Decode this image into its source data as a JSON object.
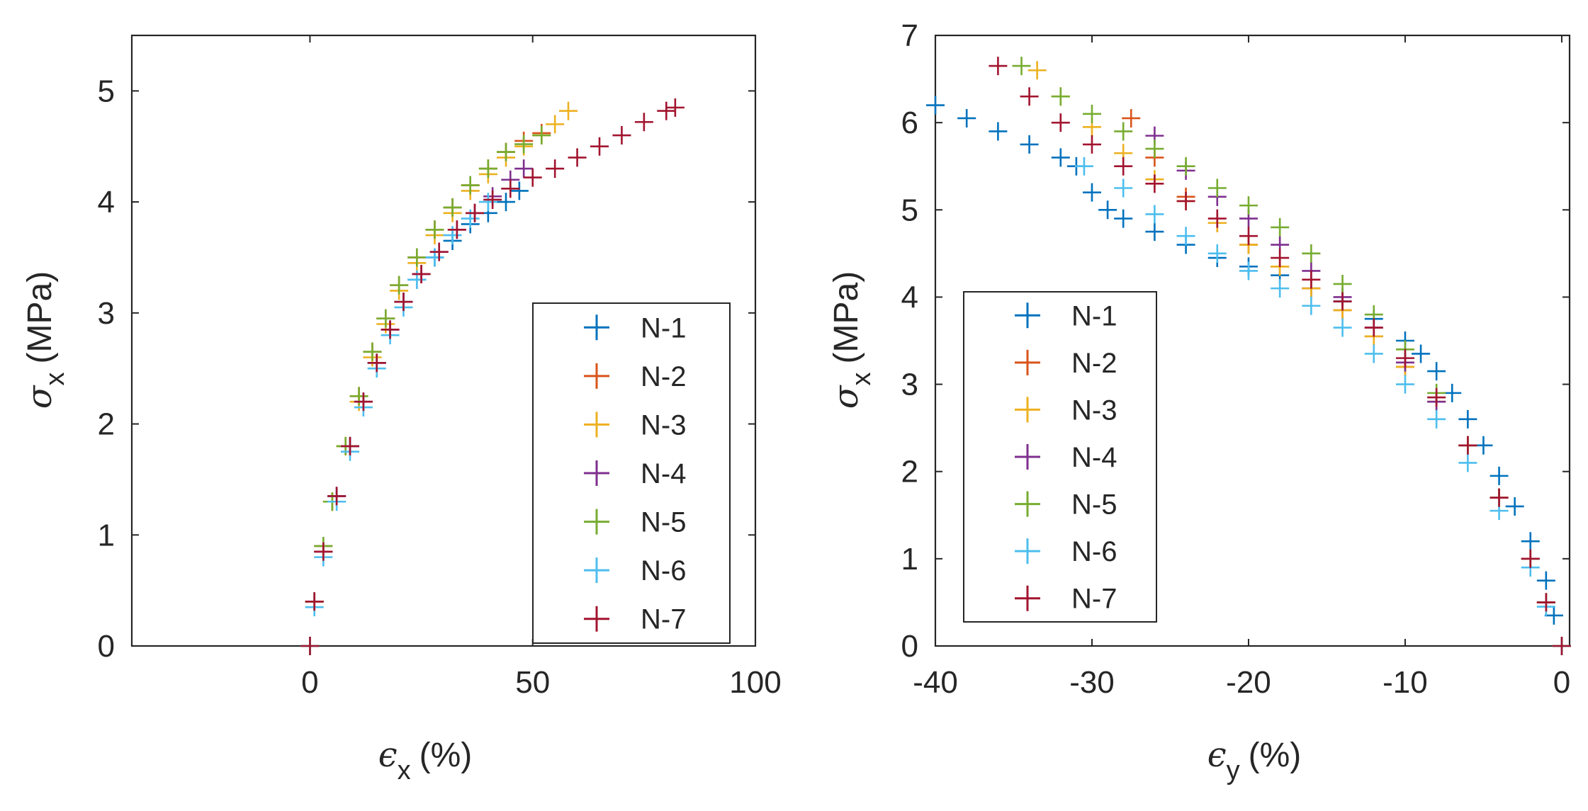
{
  "figure": {
    "panels": 2
  },
  "chart_data": [
    {
      "type": "scatter",
      "marker": "+",
      "title": "",
      "xlabel": {
        "symbol": "ϵ",
        "sub": "x",
        "unit": "(%)"
      },
      "ylabel": {
        "symbol": "σ",
        "sub": "x",
        "unit": "(MPa)"
      },
      "xlim": [
        -40,
        100
      ],
      "ylim": [
        0,
        5.5
      ],
      "xticks": [
        "0",
        "50",
        "100"
      ],
      "xtick_values": [
        0,
        50,
        100
      ],
      "yticks": [
        "0",
        "1",
        "2",
        "3",
        "4",
        "5"
      ],
      "ytick_values": [
        0,
        1,
        2,
        3,
        4,
        5
      ],
      "legend_position": "lower-right",
      "series": [
        {
          "name": "N-1",
          "color": "#0072BD",
          "x": [
            0,
            1,
            3,
            6,
            9,
            12,
            15,
            18,
            21,
            24,
            28,
            32,
            36,
            40,
            44,
            47
          ],
          "y": [
            0,
            0.4,
            0.85,
            1.35,
            1.8,
            2.2,
            2.55,
            2.85,
            3.1,
            3.3,
            3.5,
            3.65,
            3.8,
            3.9,
            4.0,
            4.1
          ]
        },
        {
          "name": "N-2",
          "color": "#D95319",
          "x": [
            0,
            1,
            3,
            5,
            8,
            11,
            14,
            17,
            20,
            24,
            28,
            32,
            36,
            40,
            44,
            48,
            52
          ],
          "y": [
            0,
            0.4,
            0.9,
            1.3,
            1.8,
            2.25,
            2.65,
            2.95,
            3.25,
            3.5,
            3.75,
            3.95,
            4.15,
            4.3,
            4.45,
            4.55,
            4.62
          ]
        },
        {
          "name": "N-3",
          "color": "#EDB120",
          "x": [
            0,
            1,
            3,
            5,
            8,
            11,
            14,
            17,
            20,
            24,
            28,
            32,
            36,
            40,
            44,
            48,
            52,
            55,
            58
          ],
          "y": [
            0,
            0.4,
            0.85,
            1.3,
            1.8,
            2.2,
            2.6,
            2.9,
            3.2,
            3.45,
            3.7,
            3.9,
            4.1,
            4.25,
            4.4,
            4.5,
            4.6,
            4.7,
            4.82
          ]
        },
        {
          "name": "N-4",
          "color": "#7E2F8E",
          "x": [
            0,
            1,
            3,
            6,
            9,
            12,
            15,
            18,
            21,
            25,
            29,
            33,
            37,
            41,
            45,
            48
          ],
          "y": [
            0,
            0.4,
            0.85,
            1.35,
            1.8,
            2.2,
            2.55,
            2.85,
            3.1,
            3.35,
            3.55,
            3.75,
            3.9,
            4.05,
            4.2,
            4.3
          ]
        },
        {
          "name": "N-5",
          "color": "#77AC30",
          "x": [
            0,
            1,
            3,
            5,
            8,
            11,
            14,
            17,
            20,
            24,
            28,
            32,
            36,
            40,
            44,
            48,
            52
          ],
          "y": [
            0,
            0.4,
            0.9,
            1.3,
            1.8,
            2.25,
            2.65,
            2.95,
            3.25,
            3.5,
            3.75,
            3.95,
            4.15,
            4.3,
            4.45,
            4.52,
            4.6
          ]
        },
        {
          "name": "N-6",
          "color": "#4DBEEE",
          "x": [
            0,
            1,
            3,
            6,
            9,
            12,
            15,
            18,
            21,
            24,
            28,
            32,
            36,
            40
          ],
          "y": [
            0,
            0.35,
            0.8,
            1.3,
            1.75,
            2.15,
            2.5,
            2.8,
            3.05,
            3.3,
            3.5,
            3.7,
            3.85,
            4.0
          ]
        },
        {
          "name": "N-7",
          "color": "#A2142F",
          "x": [
            0,
            1,
            3,
            6,
            9,
            12,
            15,
            18,
            21,
            25,
            29,
            33,
            37,
            41,
            45,
            50,
            55,
            60,
            65,
            70,
            75,
            80,
            82
          ],
          "y": [
            0,
            0.4,
            0.85,
            1.35,
            1.8,
            2.2,
            2.55,
            2.85,
            3.1,
            3.35,
            3.55,
            3.75,
            3.9,
            4.02,
            4.12,
            4.22,
            4.3,
            4.4,
            4.5,
            4.6,
            4.72,
            4.82,
            4.85
          ]
        }
      ]
    },
    {
      "type": "scatter",
      "marker": "+",
      "title": "",
      "xlabel": {
        "symbol": "ϵ",
        "sub": "y",
        "unit": "(%)"
      },
      "ylabel": {
        "symbol": "σ",
        "sub": "x",
        "unit": "(MPa)"
      },
      "xlim": [
        -40,
        0.5
      ],
      "ylim": [
        0,
        7
      ],
      "xticks": [
        "-40",
        "-30",
        "-20",
        "-10",
        "0"
      ],
      "xtick_values": [
        -40,
        -30,
        -20,
        -10,
        0
      ],
      "yticks": [
        "0",
        "1",
        "2",
        "3",
        "4",
        "5",
        "6",
        "7"
      ],
      "ytick_values": [
        0,
        1,
        2,
        3,
        4,
        5,
        6,
        7
      ],
      "legend_position": "lower-left",
      "series": [
        {
          "name": "N-1",
          "color": "#0072BD",
          "x": [
            0,
            -0.5,
            -1,
            -2,
            -3,
            -4,
            -5,
            -6,
            -7,
            -8,
            -9,
            -10,
            -12,
            -14,
            -16,
            -18,
            -20,
            -22,
            -24,
            -26,
            -28,
            -29,
            -30,
            -31,
            -32,
            -34,
            -36,
            -38,
            -40
          ],
          "y": [
            0,
            0.35,
            0.75,
            1.2,
            1.6,
            1.95,
            2.3,
            2.6,
            2.9,
            3.15,
            3.35,
            3.5,
            3.75,
            3.95,
            4.1,
            4.25,
            4.35,
            4.45,
            4.6,
            4.75,
            4.9,
            5.0,
            5.2,
            5.5,
            5.6,
            5.75,
            5.9,
            6.05,
            6.2
          ]
        },
        {
          "name": "N-2",
          "color": "#D95319",
          "x": [
            0,
            -1,
            -2,
            -4,
            -6,
            -8,
            -10,
            -12,
            -14,
            -16,
            -18,
            -20,
            -22,
            -24,
            -26,
            -27.5
          ],
          "y": [
            0,
            0.5,
            1.0,
            1.7,
            2.3,
            2.8,
            3.2,
            3.55,
            3.85,
            4.1,
            4.35,
            4.6,
            4.85,
            5.15,
            5.6,
            6.05
          ]
        },
        {
          "name": "N-3",
          "color": "#EDB120",
          "x": [
            0,
            -1,
            -2,
            -4,
            -6,
            -8,
            -10,
            -12,
            -14,
            -16,
            -18,
            -20,
            -22,
            -24,
            -26,
            -28,
            -30,
            -32,
            -33.5
          ],
          "y": [
            0,
            0.5,
            1.0,
            1.7,
            2.3,
            2.8,
            3.2,
            3.55,
            3.85,
            4.1,
            4.35,
            4.6,
            4.85,
            5.1,
            5.35,
            5.65,
            5.95,
            6.3,
            6.6
          ]
        },
        {
          "name": "N-4",
          "color": "#7E2F8E",
          "x": [
            0,
            -1,
            -2,
            -4,
            -6,
            -8,
            -10,
            -12,
            -14,
            -16,
            -18,
            -20,
            -22,
            -24,
            -26
          ],
          "y": [
            0,
            0.5,
            1.0,
            1.7,
            2.3,
            2.8,
            3.25,
            3.65,
            4.0,
            4.3,
            4.6,
            4.9,
            5.15,
            5.45,
            5.85
          ]
        },
        {
          "name": "N-5",
          "color": "#77AC30",
          "x": [
            0,
            -1,
            -2,
            -4,
            -6,
            -8,
            -10,
            -12,
            -14,
            -16,
            -18,
            -20,
            -22,
            -24,
            -26,
            -28,
            -30,
            -32,
            -34.5
          ],
          "y": [
            0,
            0.5,
            1.0,
            1.7,
            2.3,
            2.9,
            3.4,
            3.8,
            4.15,
            4.5,
            4.8,
            5.05,
            5.25,
            5.5,
            5.7,
            5.9,
            6.1,
            6.3,
            6.65
          ]
        },
        {
          "name": "N-6",
          "color": "#4DBEEE",
          "x": [
            0,
            -1,
            -2,
            -4,
            -6,
            -8,
            -10,
            -12,
            -14,
            -16,
            -18,
            -20,
            -22,
            -24,
            -26,
            -28,
            -30.5
          ],
          "y": [
            0,
            0.45,
            0.9,
            1.55,
            2.1,
            2.6,
            3.0,
            3.35,
            3.65,
            3.9,
            4.1,
            4.3,
            4.5,
            4.7,
            4.95,
            5.25,
            5.5
          ]
        },
        {
          "name": "N-7",
          "color": "#A2142F",
          "x": [
            0,
            -1,
            -2,
            -4,
            -6,
            -8,
            -10,
            -12,
            -14,
            -16,
            -18,
            -20,
            -22,
            -24,
            -26,
            -28,
            -30,
            -32,
            -34,
            -36
          ],
          "y": [
            0,
            0.5,
            1.0,
            1.7,
            2.3,
            2.85,
            3.3,
            3.65,
            3.95,
            4.2,
            4.45,
            4.7,
            4.9,
            5.1,
            5.3,
            5.5,
            5.75,
            6.0,
            6.3,
            6.65
          ]
        }
      ]
    }
  ]
}
